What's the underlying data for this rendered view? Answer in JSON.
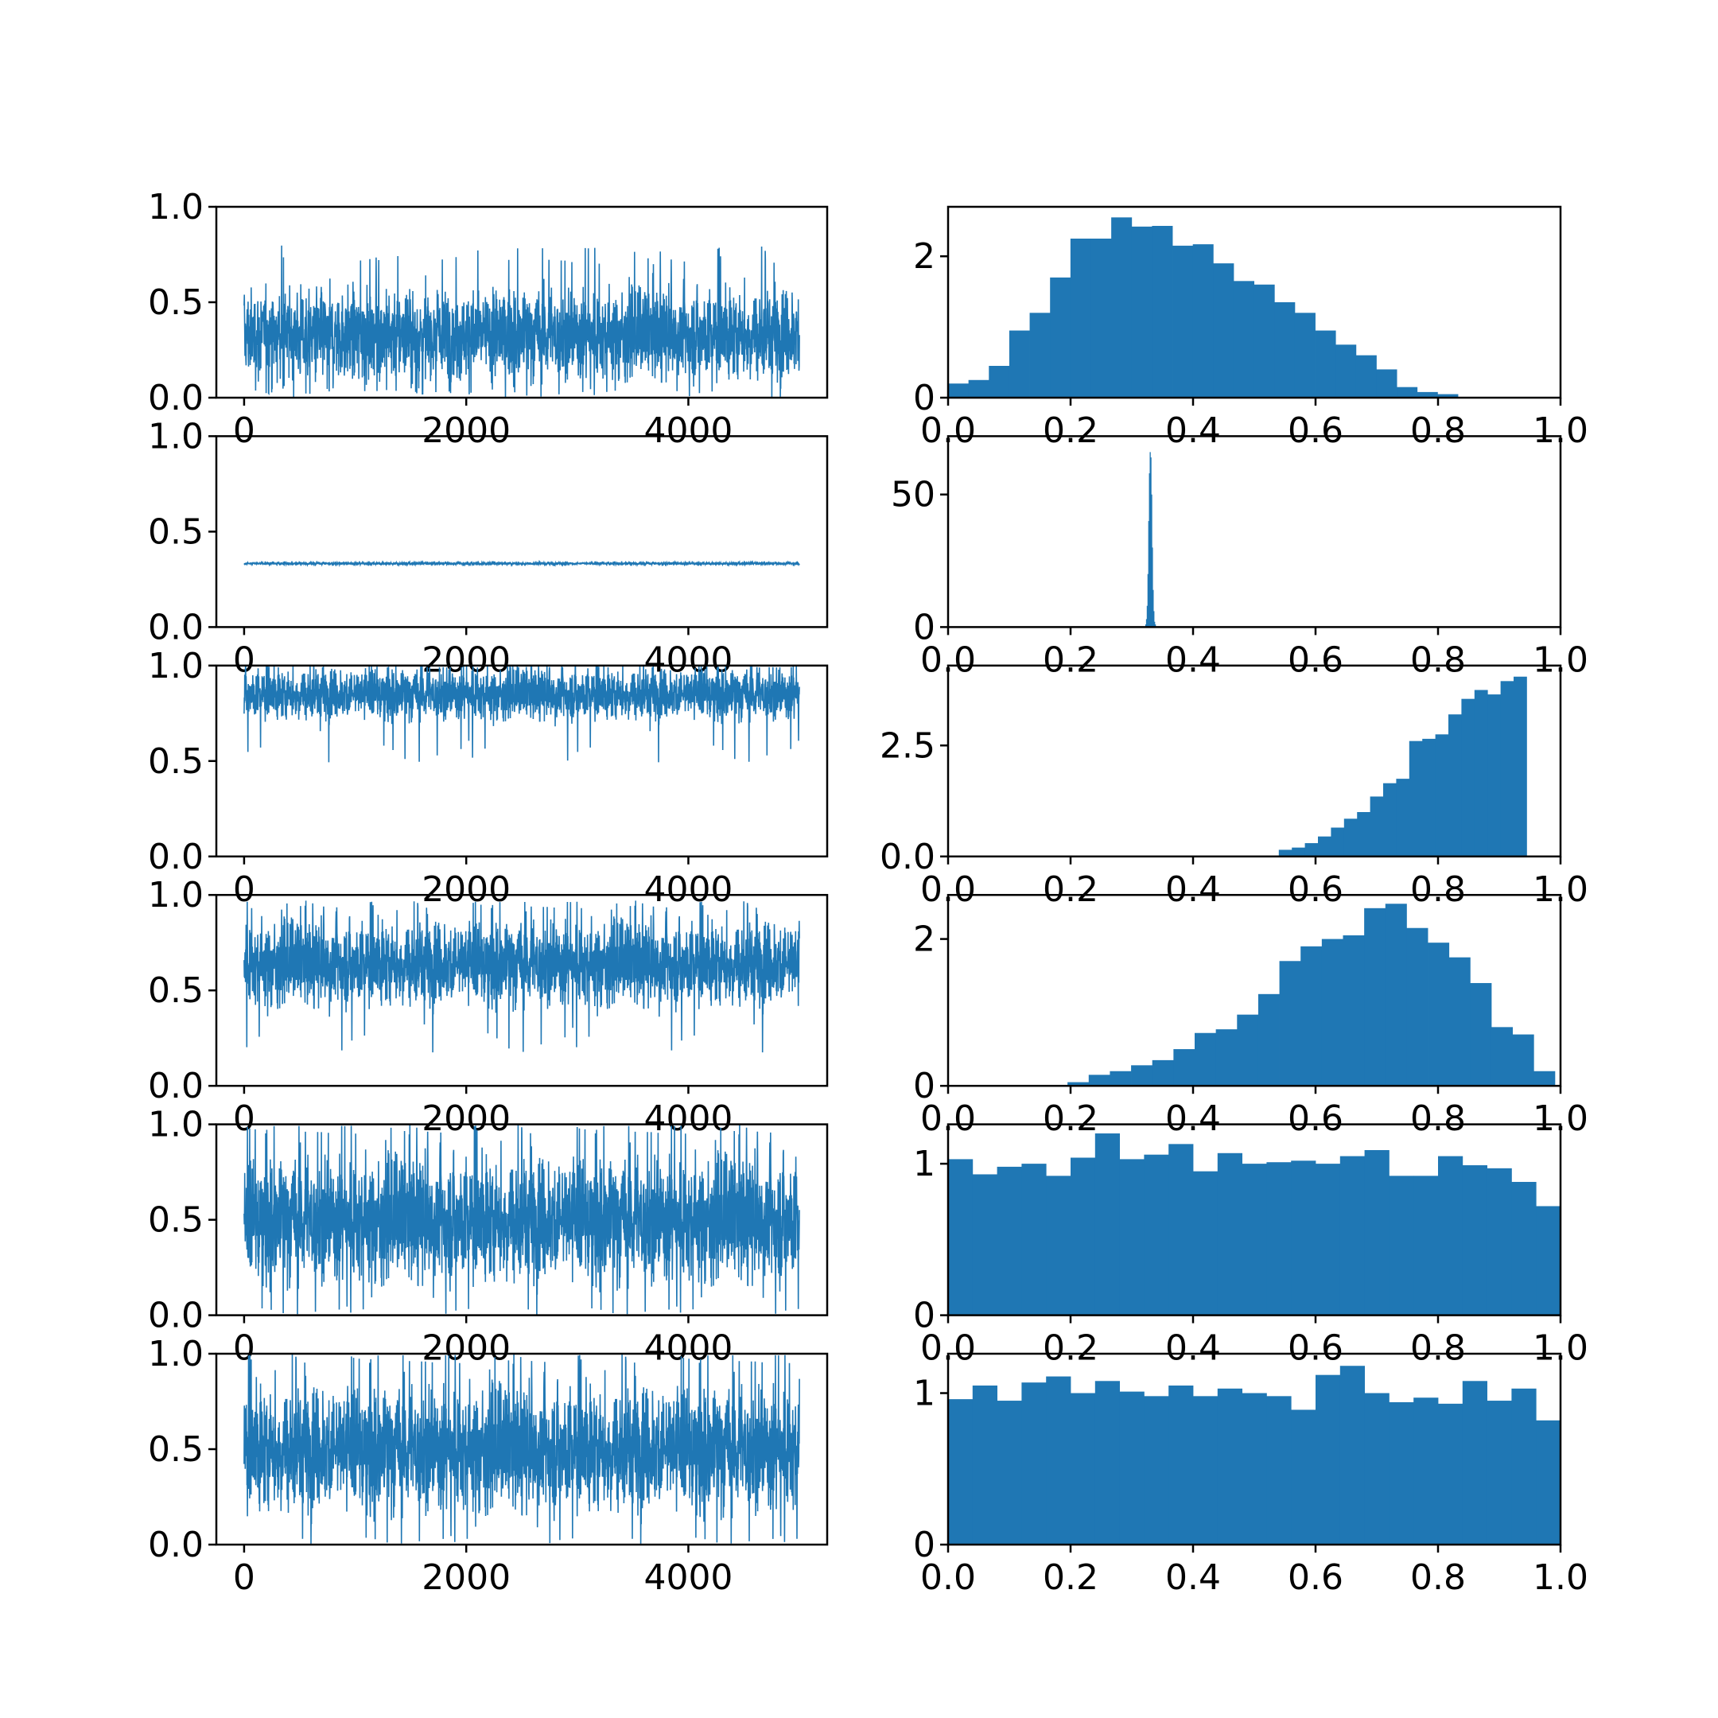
{
  "figure": {
    "color": "#1f77b4",
    "rows": 6,
    "columns": [
      "trace",
      "histogram"
    ]
  },
  "chart_data": [
    {
      "type": "line",
      "panel": "trace-1",
      "x_range": [
        0,
        5000
      ],
      "xlim": [
        -250,
        5250
      ],
      "ylim": [
        0,
        1
      ],
      "y_ticks": [
        0.0,
        0.5,
        1.0
      ],
      "y_tick_labels": [
        "0.0",
        "0.5",
        "1.0"
      ],
      "x_ticks": [
        0,
        2000,
        4000
      ],
      "x_tick_labels": [
        "0",
        "2000",
        "4000"
      ],
      "trace_center": 0.33,
      "trace_low": 0.05,
      "trace_high": 0.7,
      "trace_min": 0.0,
      "trace_max": 0.8
    },
    {
      "type": "bar",
      "panel": "hist-1",
      "xlim": [
        0,
        1
      ],
      "ylim": [
        0,
        2.7
      ],
      "y_ticks": [
        0,
        2
      ],
      "y_tick_labels": [
        "0",
        "2"
      ],
      "x_ticks": [
        0.0,
        0.2,
        0.4,
        0.6,
        0.8,
        1.0
      ],
      "x_tick_labels": [
        "0.0",
        "0.2",
        "0.4",
        "0.6",
        "0.8",
        "1.0"
      ],
      "bin_edges_start": 0.0,
      "bin_width": 0.0333,
      "values": [
        0.2,
        0.25,
        0.45,
        0.95,
        1.2,
        1.7,
        2.25,
        2.25,
        2.55,
        2.42,
        2.43,
        2.15,
        2.17,
        1.9,
        1.65,
        1.6,
        1.35,
        1.2,
        0.95,
        0.75,
        0.6,
        0.4,
        0.15,
        0.08,
        0.05,
        0.01
      ]
    },
    {
      "type": "line",
      "panel": "trace-2",
      "x_range": [
        0,
        5000
      ],
      "xlim": [
        -250,
        5250
      ],
      "ylim": [
        0,
        1
      ],
      "y_ticks": [
        0.0,
        0.5,
        1.0
      ],
      "y_tick_labels": [
        "0.0",
        "0.5",
        "1.0"
      ],
      "x_ticks": [
        0,
        2000,
        4000
      ],
      "x_tick_labels": [
        "0",
        "2000",
        "4000"
      ],
      "trace_center": 0.333,
      "trace_low": 0.325,
      "trace_high": 0.342,
      "trace_min": 0.32,
      "trace_max": 0.345
    },
    {
      "type": "bar",
      "panel": "hist-2",
      "xlim": [
        0,
        1
      ],
      "ylim": [
        0,
        72
      ],
      "y_ticks": [
        0,
        50
      ],
      "y_tick_labels": [
        "0",
        "50"
      ],
      "x_ticks": [
        0.0,
        0.2,
        0.4,
        0.6,
        0.8,
        1.0
      ],
      "x_tick_labels": [
        "0.0",
        "0.2",
        "0.4",
        "0.6",
        "0.8",
        "1.0"
      ],
      "bin_edges_start": 0.322,
      "bin_width": 0.0012,
      "values": [
        1,
        3,
        8,
        20,
        40,
        58,
        66,
        64,
        50,
        30,
        14,
        6,
        2,
        1
      ]
    },
    {
      "type": "line",
      "panel": "trace-3",
      "x_range": [
        0,
        5000
      ],
      "xlim": [
        -250,
        5250
      ],
      "ylim": [
        0,
        1
      ],
      "y_ticks": [
        0.0,
        0.5,
        1.0
      ],
      "y_tick_labels": [
        "0.0",
        "0.5",
        "1.0"
      ],
      "x_ticks": [
        0,
        2000,
        4000
      ],
      "x_tick_labels": [
        "0",
        "2000",
        "4000"
      ],
      "trace_center": 0.85,
      "trace_low": 0.62,
      "trace_high": 0.99,
      "trace_min": 0.48,
      "trace_max": 1.0
    },
    {
      "type": "bar",
      "panel": "hist-3",
      "xlim": [
        0,
        1
      ],
      "ylim": [
        0,
        4.3
      ],
      "y_ticks": [
        0.0,
        2.5
      ],
      "y_tick_labels": [
        "0.0",
        "2.5"
      ],
      "x_ticks": [
        0.0,
        0.2,
        0.4,
        0.6,
        0.8,
        1.0
      ],
      "x_tick_labels": [
        "0.0",
        "0.2",
        "0.4",
        "0.6",
        "0.8",
        "1.0"
      ],
      "bin_edges_start": 0.54,
      "bin_width": 0.0213,
      "values": [
        0.15,
        0.2,
        0.3,
        0.45,
        0.65,
        0.85,
        1.0,
        1.35,
        1.65,
        1.75,
        2.6,
        2.65,
        2.75,
        3.2,
        3.55,
        3.75,
        3.65,
        3.95,
        4.05
      ]
    },
    {
      "type": "line",
      "panel": "trace-4",
      "x_range": [
        0,
        5000
      ],
      "xlim": [
        -250,
        5250
      ],
      "ylim": [
        0,
        1
      ],
      "y_ticks": [
        0.0,
        0.5,
        1.0
      ],
      "y_tick_labels": [
        "0.0",
        "0.5",
        "1.0"
      ],
      "x_ticks": [
        0,
        2000,
        4000
      ],
      "x_tick_labels": [
        "0",
        "2000",
        "4000"
      ],
      "trace_center": 0.64,
      "trace_low": 0.32,
      "trace_high": 0.93,
      "trace_min": 0.16,
      "trace_max": 0.97
    },
    {
      "type": "bar",
      "panel": "hist-4",
      "xlim": [
        0,
        1
      ],
      "ylim": [
        0,
        2.6
      ],
      "y_ticks": [
        0,
        2
      ],
      "y_tick_labels": [
        "0",
        "2"
      ],
      "x_ticks": [
        0.0,
        0.2,
        0.4,
        0.6,
        0.8,
        1.0
      ],
      "x_tick_labels": [
        "0.0",
        "0.2",
        "0.4",
        "0.6",
        "0.8",
        "1.0"
      ],
      "bin_edges_start": 0.195,
      "bin_width": 0.0346,
      "values": [
        0.05,
        0.15,
        0.2,
        0.28,
        0.35,
        0.5,
        0.72,
        0.77,
        0.97,
        1.25,
        1.7,
        1.9,
        2.0,
        2.05,
        2.42,
        2.48,
        2.15,
        1.95,
        1.75,
        1.4,
        0.8,
        0.7,
        0.2
      ]
    },
    {
      "type": "line",
      "panel": "trace-5",
      "x_range": [
        0,
        5000
      ],
      "xlim": [
        -250,
        5250
      ],
      "ylim": [
        0,
        1
      ],
      "y_ticks": [
        0.0,
        0.5,
        1.0
      ],
      "y_tick_labels": [
        "0.0",
        "0.5",
        "1.0"
      ],
      "x_ticks": [
        0,
        2000,
        4000
      ],
      "x_tick_labels": [
        "0",
        "2000",
        "4000"
      ],
      "trace_center": 0.5,
      "trace_low": 0.05,
      "trace_high": 0.95,
      "trace_min": 0.0,
      "trace_max": 1.0
    },
    {
      "type": "bar",
      "panel": "hist-5",
      "xlim": [
        0,
        1
      ],
      "ylim": [
        0,
        1.26
      ],
      "y_ticks": [
        0,
        1
      ],
      "y_tick_labels": [
        "0",
        "1"
      ],
      "x_ticks": [
        0.0,
        0.2,
        0.4,
        0.6,
        0.8,
        1.0
      ],
      "x_tick_labels": [
        "0.0",
        "0.2",
        "0.4",
        "0.6",
        "0.8",
        "1.0"
      ],
      "bin_edges_start": 0.0,
      "bin_width": 0.04,
      "values": [
        1.03,
        0.93,
        0.98,
        1.0,
        0.92,
        1.04,
        1.2,
        1.03,
        1.06,
        1.13,
        0.95,
        1.07,
        1.0,
        1.01,
        1.02,
        1.0,
        1.05,
        1.09,
        0.92,
        0.92,
        1.05,
        0.99,
        0.97,
        0.88,
        0.72
      ]
    },
    {
      "type": "line",
      "panel": "trace-6",
      "x_range": [
        0,
        5000
      ],
      "xlim": [
        -250,
        5250
      ],
      "ylim": [
        0,
        1
      ],
      "y_ticks": [
        0.0,
        0.5,
        1.0
      ],
      "y_tick_labels": [
        "0.0",
        "0.5",
        "1.0"
      ],
      "x_ticks": [
        0,
        2000,
        4000
      ],
      "x_tick_labels": [
        "0",
        "2000",
        "4000"
      ],
      "trace_center": 0.5,
      "trace_low": 0.05,
      "trace_high": 0.95,
      "trace_min": 0.0,
      "trace_max": 1.0
    },
    {
      "type": "bar",
      "panel": "hist-6",
      "xlim": [
        0,
        1
      ],
      "ylim": [
        0,
        1.26
      ],
      "y_ticks": [
        0,
        1
      ],
      "y_tick_labels": [
        "0",
        "1"
      ],
      "x_ticks": [
        0.0,
        0.2,
        0.4,
        0.6,
        0.8,
        1.0
      ],
      "x_tick_labels": [
        "0.0",
        "0.2",
        "0.4",
        "0.6",
        "0.8",
        "1.0"
      ],
      "bin_edges_start": 0.0,
      "bin_width": 0.04,
      "values": [
        0.96,
        1.05,
        0.95,
        1.07,
        1.11,
        1.0,
        1.08,
        1.01,
        0.98,
        1.05,
        0.98,
        1.03,
        1.0,
        0.98,
        0.89,
        1.12,
        1.18,
        1.0,
        0.94,
        0.97,
        0.93,
        1.08,
        0.95,
        1.03,
        0.82
      ]
    }
  ]
}
